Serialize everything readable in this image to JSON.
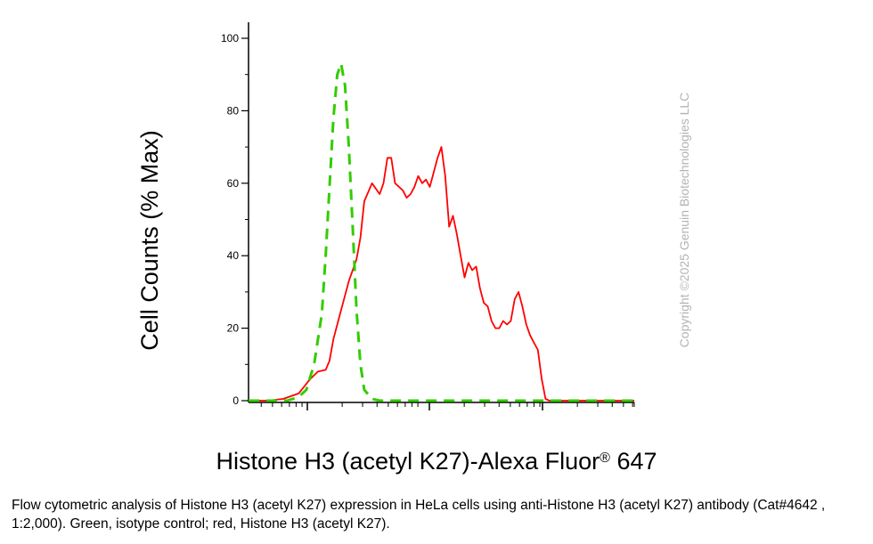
{
  "chart_data": {
    "type": "line",
    "title": "",
    "xlabel": "Histone H3 (acetyl K27)-Alexa Fluor",
    "xlabel_mark": "®",
    "xlabel_suffix": " 647",
    "ylabel": "Cell Counts (% Max)",
    "ylim": [
      0,
      100
    ],
    "yticks": [
      0,
      20,
      40,
      60,
      80,
      100
    ],
    "ytick_labels": [
      "0",
      "20",
      "40",
      "60",
      "80",
      "100"
    ],
    "xscale": "log",
    "xlim": [
      0,
      100
    ],
    "grid": false,
    "legend": "none",
    "series": [
      {
        "color": "#ff0000",
        "style": "solid",
        "x": [
          0,
          5,
          9,
          13,
          16,
          18,
          20,
          21,
          22,
          24,
          26,
          28,
          29,
          30,
          32,
          34,
          35,
          36,
          37,
          38,
          40,
          41,
          42,
          43,
          44,
          45,
          46,
          47,
          49,
          50,
          51,
          52,
          53,
          54,
          55,
          56,
          57,
          58,
          59,
          60,
          61,
          62,
          63,
          64,
          65,
          66,
          67,
          68,
          69,
          70,
          71,
          72,
          73,
          74,
          75,
          76,
          77,
          78,
          79,
          80,
          81,
          82,
          83,
          84,
          85,
          86,
          87,
          88,
          89,
          90,
          91,
          92,
          93,
          94,
          95,
          96,
          97,
          98,
          100
        ],
        "values": [
          0,
          0,
          0.5,
          2,
          6,
          8,
          8.5,
          11,
          17,
          25,
          33,
          39,
          45,
          55,
          60,
          57,
          60,
          67,
          67,
          60,
          58,
          56,
          57,
          59,
          62,
          60,
          61,
          59,
          67,
          70,
          62,
          48,
          51,
          46,
          40,
          34,
          38,
          36,
          37,
          31,
          27,
          26,
          22,
          20,
          20,
          22,
          21,
          22,
          28,
          30,
          26,
          21,
          18,
          16,
          14,
          6,
          0.5,
          0,
          0,
          0,
          0,
          0,
          0,
          0,
          0,
          0,
          0,
          0,
          0,
          0,
          0,
          0,
          0,
          0,
          0,
          0,
          0,
          0,
          0
        ]
      },
      {
        "color": "#33cc00",
        "style": "dashed",
        "x": [
          0,
          5,
          10,
          13,
          15,
          17,
          19,
          20,
          21,
          22,
          23,
          24,
          25,
          26,
          27,
          28,
          29,
          30,
          32,
          34,
          36,
          100
        ],
        "values": [
          0,
          0,
          0,
          1,
          3,
          10,
          24,
          40,
          59,
          78,
          90,
          93,
          87,
          70,
          48,
          25,
          10,
          3,
          0.5,
          0,
          0,
          0
        ]
      }
    ]
  },
  "copyright": "Copyright ©2025 Genuin Biotechnologies LLC",
  "caption": "Flow cytometric analysis of Histone H3 (acetyl K27) expression in HeLa cells using anti-Histone H3 (acetyl K27) antibody (Cat#4642 , 1:2,000). Green, isotype control; red, Histone H3 (acetyl K27)."
}
